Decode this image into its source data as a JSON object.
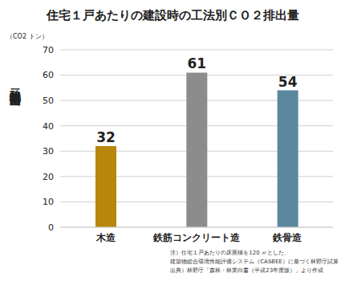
{
  "chart_data": {
    "type": "bar",
    "title": "住宅１戸あたりの建設時の工法別ＣＯ２排出量",
    "y_unit": "（CO2 トン）",
    "ylabel": "二酸化炭素排出量",
    "categories": [
      "木造",
      "鉄筋コンクリート造",
      "鉄骨造"
    ],
    "values": [
      32,
      61,
      54
    ],
    "colors": [
      "#b8860b",
      "#8c8c8c",
      "#5b879f"
    ],
    "ylim": [
      0,
      70
    ],
    "yticks": [
      0,
      10,
      20,
      30,
      40,
      50,
      60,
      70
    ],
    "grid": true,
    "data_labels": true,
    "annotations": [
      "注）住宅１戸あたりの床面積を120 ㎡とした、",
      "建築物総合環境性能評価システム（CASBEE）に基づく林野庁試算",
      "出典）林野庁「森林・林業白書（平成23年度版）」より作成"
    ]
  }
}
